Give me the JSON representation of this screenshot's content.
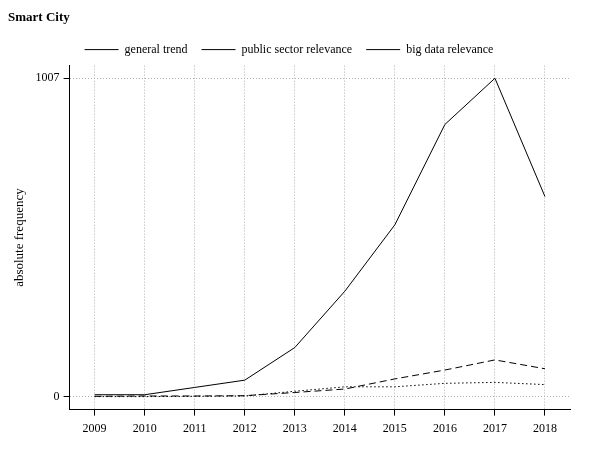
{
  "chart_data": {
    "type": "line",
    "title": "Smart City",
    "y_label": "absolute frequency",
    "categories": [
      "2009",
      "2010",
      "2011",
      "2012",
      "2013",
      "2014",
      "2015",
      "2016",
      "2017",
      "2018"
    ],
    "series": [
      {
        "name": "general trend",
        "color": "#000000",
        "line_style": "solid",
        "values": [
          7,
          7,
          30,
          53,
          156,
          334,
          544,
          861,
          1007,
          633
        ]
      },
      {
        "name": "public sector relevance",
        "color": "#000000",
        "line_style": "dotted",
        "values": [
          1,
          1,
          2,
          3,
          18,
          32,
          32,
          43,
          46,
          39
        ]
      },
      {
        "name": "big data relevance",
        "color": "#000000",
        "line_style": "dashed",
        "values": [
          2,
          3,
          3,
          4,
          14,
          25,
          57,
          85,
          117,
          89
        ]
      }
    ],
    "ylim": [
      -40,
      1047
    ],
    "yticks": [
      0,
      1007
    ],
    "grid": true,
    "legend": "top"
  }
}
